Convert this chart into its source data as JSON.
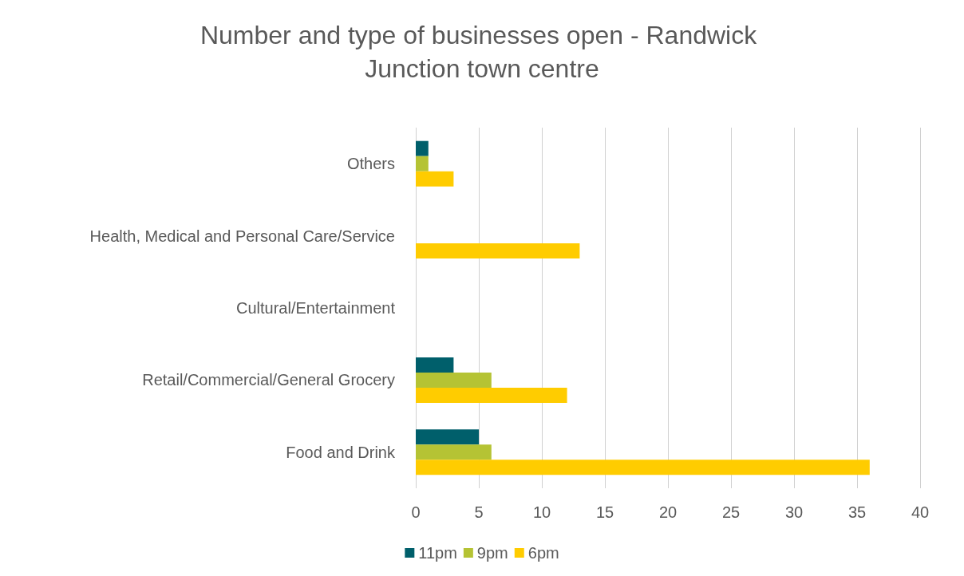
{
  "chart_data": {
    "type": "bar",
    "orientation": "horizontal",
    "title": "Number and type of businesses open - Randwick Junction town centre",
    "categories": [
      "Others",
      "Health, Medical and Personal Care/Service",
      "Cultural/Entertainment",
      "Retail/Commercial/General Grocery",
      "Food and Drink"
    ],
    "series": [
      {
        "name": "11pm",
        "color": "#005f6b",
        "values": [
          1,
          0,
          0,
          3,
          5
        ]
      },
      {
        "name": "9pm",
        "color": "#b5c334",
        "values": [
          1,
          0,
          0,
          6,
          6
        ]
      },
      {
        "name": "6pm",
        "color": "#ffcc00",
        "values": [
          3,
          13,
          0,
          12,
          36
        ]
      }
    ],
    "xlim": [
      0,
      40
    ],
    "xticks": [
      0,
      5,
      10,
      15,
      20,
      25,
      30,
      35,
      40
    ],
    "grid": "x",
    "legend": "bottom"
  }
}
